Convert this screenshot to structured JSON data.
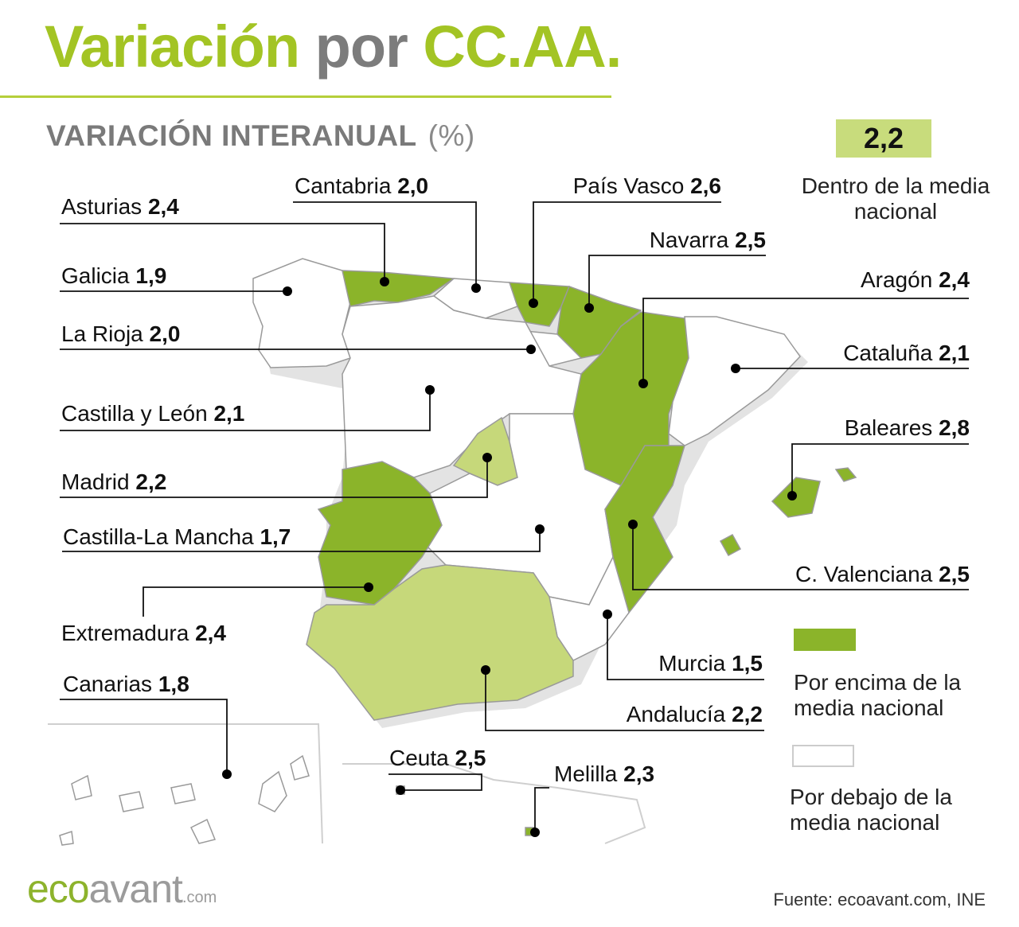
{
  "title": {
    "part1": "Variación",
    "part2": "por",
    "part3": "CC.AA."
  },
  "subtitle": {
    "main": "VARIACIÓN INTERANUAL",
    "unit": "(%)"
  },
  "colors": {
    "above": "#8bb42a",
    "within": "#c6d87a",
    "below": "#ffffff",
    "accent": "#a3c424"
  },
  "legend": {
    "national_value": "2,2",
    "within_label": "Dentro de la media nacional",
    "above_label": "Por encima de la media nacional",
    "below_label": "Por debajo de la media nacional"
  },
  "regions": [
    {
      "name": "Asturias",
      "value": "2,4",
      "status": "above"
    },
    {
      "name": "Cantabria",
      "value": "2,0",
      "status": "below"
    },
    {
      "name": "País Vasco",
      "value": "2,6",
      "status": "above"
    },
    {
      "name": "Navarra",
      "value": "2,5",
      "status": "above"
    },
    {
      "name": "Galicia",
      "value": "1,9",
      "status": "below"
    },
    {
      "name": "Aragón",
      "value": "2,4",
      "status": "above"
    },
    {
      "name": "La Rioja",
      "value": "2,0",
      "status": "below"
    },
    {
      "name": "Cataluña",
      "value": "2,1",
      "status": "below"
    },
    {
      "name": "Castilla y León",
      "value": "2,1",
      "status": "below"
    },
    {
      "name": "Baleares",
      "value": "2,8",
      "status": "above"
    },
    {
      "name": "Madrid",
      "value": "2,2",
      "status": "within"
    },
    {
      "name": "Castilla-La Mancha",
      "value": "1,7",
      "status": "below"
    },
    {
      "name": "C. Valenciana",
      "value": "2,5",
      "status": "above"
    },
    {
      "name": "Extremadura",
      "value": "2,4",
      "status": "above"
    },
    {
      "name": "Murcia",
      "value": "1,5",
      "status": "below"
    },
    {
      "name": "Canarias",
      "value": "1,8",
      "status": "below"
    },
    {
      "name": "Andalucía",
      "value": "2,2",
      "status": "within"
    },
    {
      "name": "Ceuta",
      "value": "2,5",
      "status": "above"
    },
    {
      "name": "Melilla",
      "value": "2,3",
      "status": "above"
    }
  ],
  "source": "Fuente: ecoavant.com, INE",
  "logo": {
    "part1": "eco",
    "part2": "avant",
    "suffix": ".com"
  }
}
